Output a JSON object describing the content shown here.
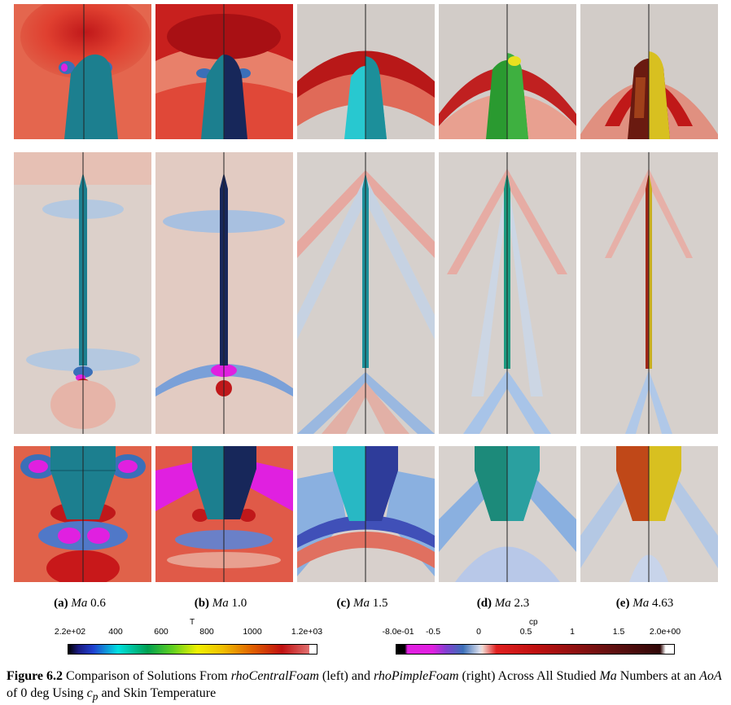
{
  "subfigures": [
    {
      "tag": "(a)",
      "label": "Ma",
      "value": "0.6"
    },
    {
      "tag": "(b)",
      "label": "Ma",
      "value": "1.0"
    },
    {
      "tag": "(c)",
      "label": "Ma",
      "value": "1.5"
    },
    {
      "tag": "(d)",
      "label": "Ma",
      "value": "2.3"
    },
    {
      "tag": "(e)",
      "label": "Ma",
      "value": "4.63"
    }
  ],
  "colorbar_T": {
    "title": "T",
    "ticks": [
      "2.2e+02",
      "400",
      "600",
      "800",
      "1000",
      "1.2e+03"
    ]
  },
  "colorbar_cp": {
    "title": "cp",
    "ticks": [
      "-8.0e-01",
      "-0.5",
      "0",
      "0.5",
      "1",
      "1.5",
      "2.0e+00"
    ]
  },
  "caption": {
    "label": "Figure 6.2",
    "text_1": " Comparison of Solutions From ",
    "solver_1": "rhoCentralFoam",
    "text_2": " (left) and ",
    "solver_2": "rhoPimpleFoam",
    "text_3": " (right) Across All Studied ",
    "ma": "Ma",
    "text_4": " Numbers at an ",
    "aoa": "AoA",
    "text_5": " of 0 deg Using ",
    "cp_sym": "c",
    "cp_sub": "p",
    "text_6": " and Skin Temperature"
  },
  "colors": {
    "background": "#d4cfcb",
    "red": "#d2322d",
    "blue": "#3b6fb8",
    "magenta": "#e020e0",
    "teal": "#1c7f8f",
    "navy": "#17275a"
  }
}
